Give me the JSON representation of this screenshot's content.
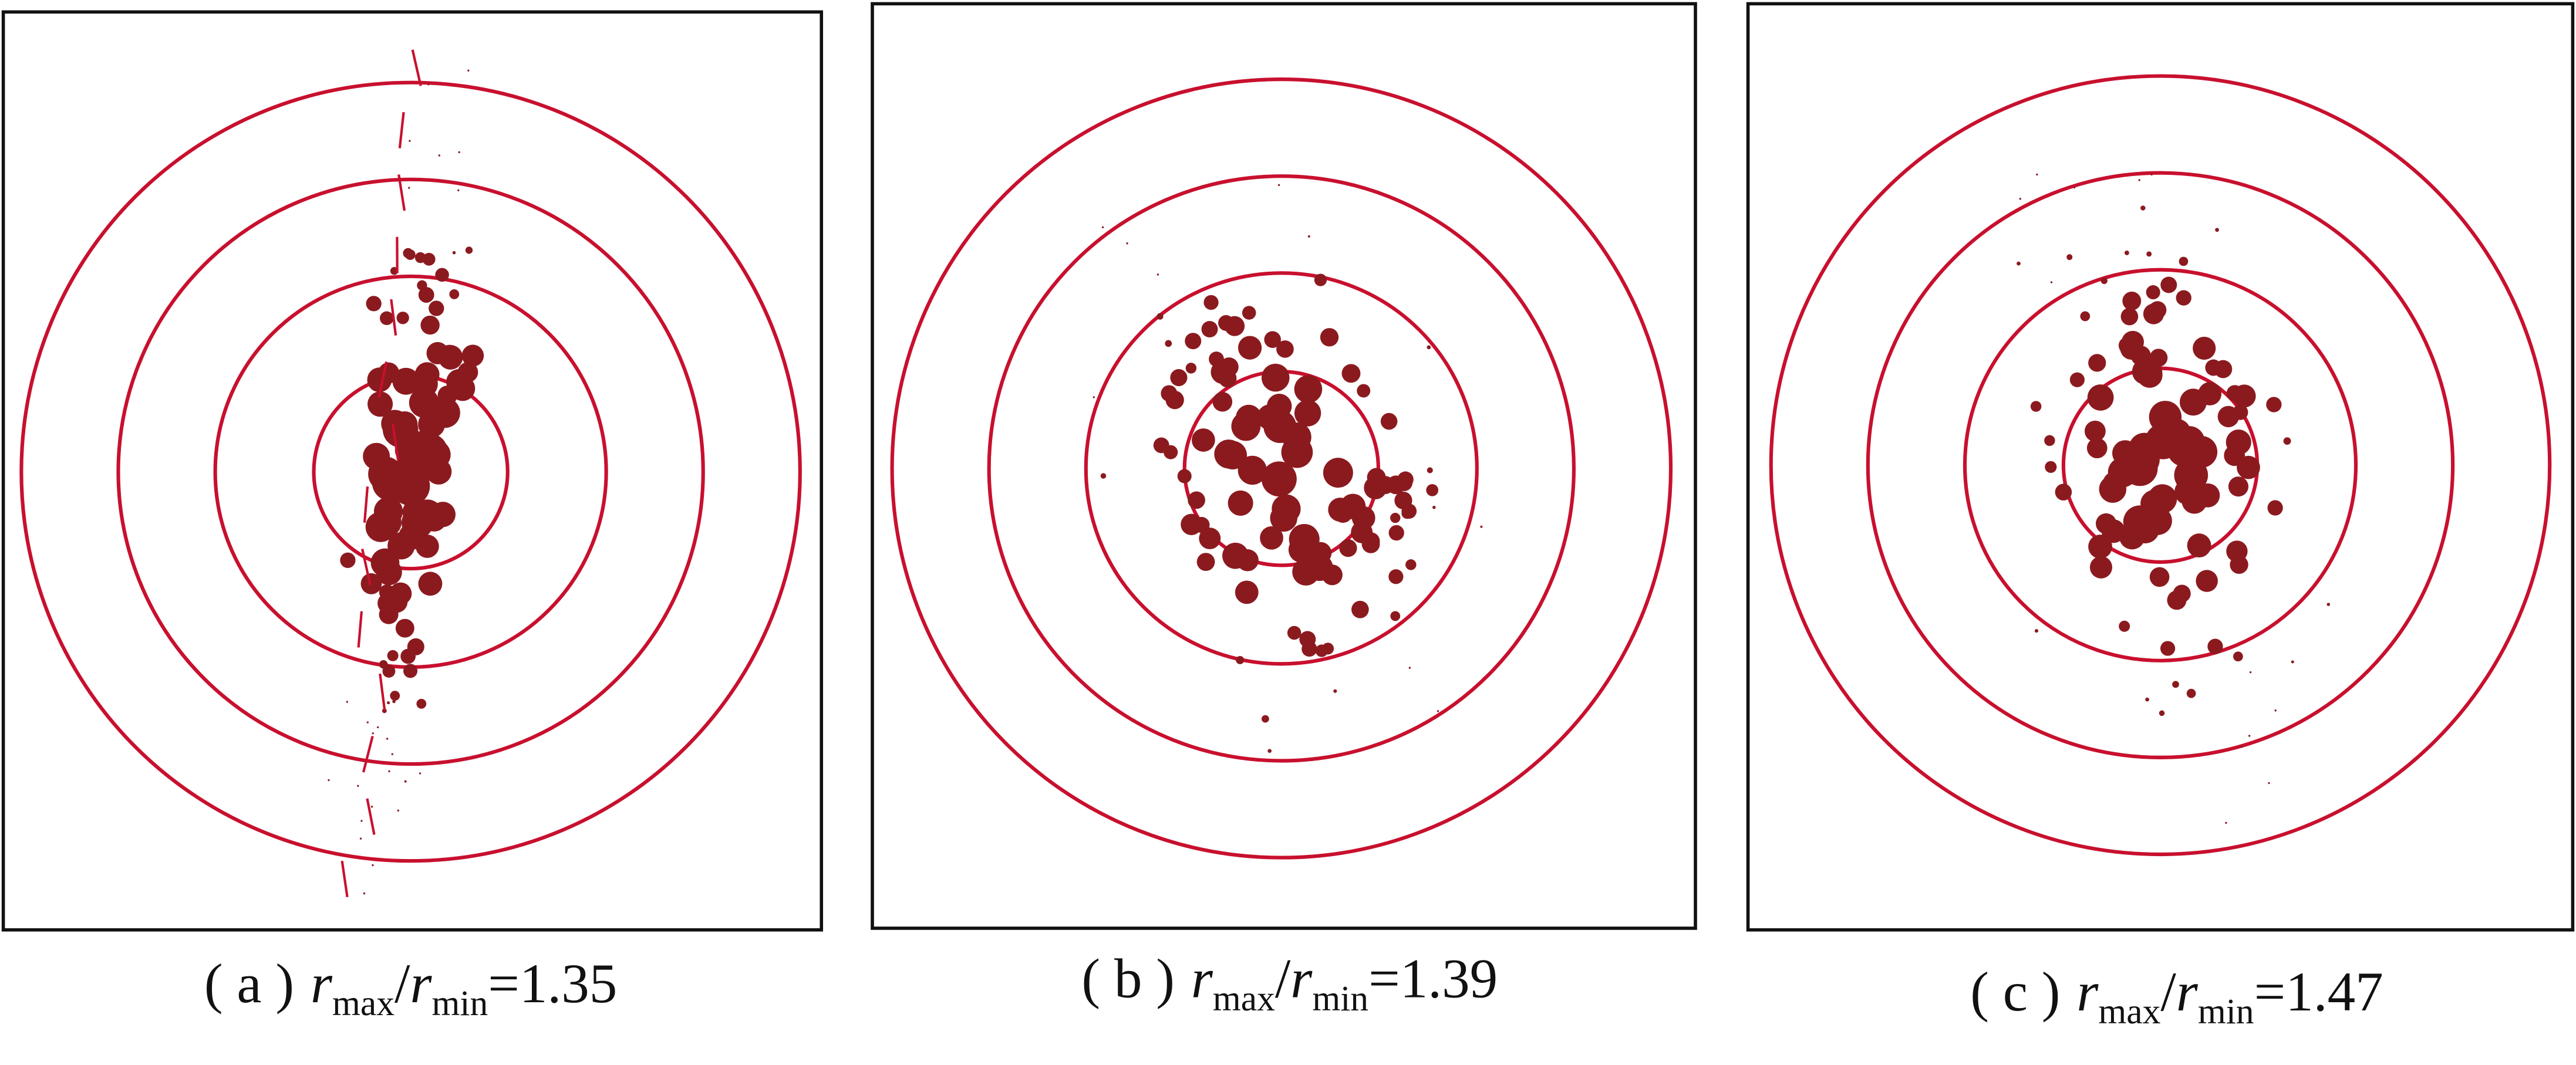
{
  "panels": [
    {
      "label": "( a )",
      "numerator": "r",
      "numerator_sub": "max",
      "separator": "/",
      "denominator": "r",
      "denominator_sub": "min",
      "value": "=1.35"
    },
    {
      "label": "( b )",
      "numerator": "r",
      "numerator_sub": "max",
      "separator": "/",
      "denominator": "r",
      "denominator_sub": "min",
      "value": "=1.39"
    },
    {
      "label": "( c )",
      "numerator": "r",
      "numerator_sub": "max",
      "separator": "/",
      "denominator": "r",
      "denominator_sub": "min",
      "value": "=1.47"
    }
  ]
}
